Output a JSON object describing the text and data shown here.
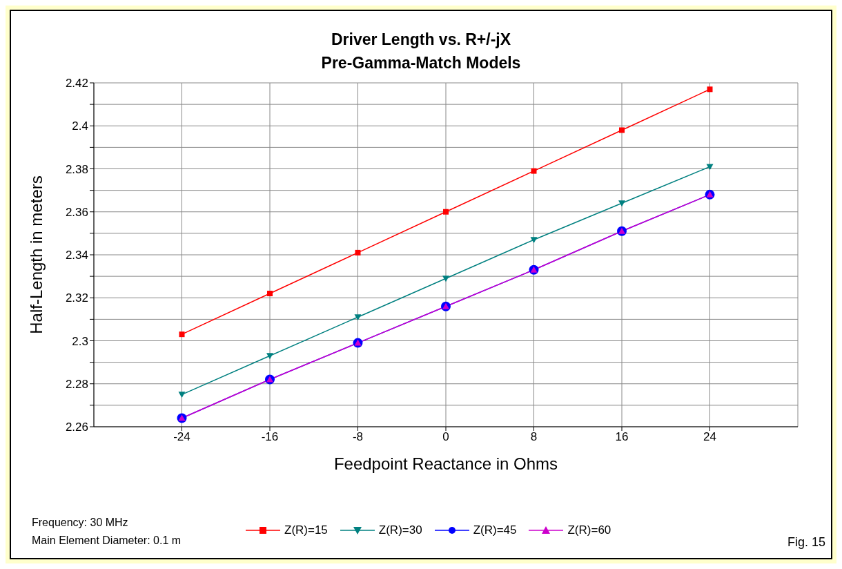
{
  "chart_data": {
    "type": "line",
    "title": "Driver Length vs. R+/-jX",
    "subtitle": "Pre-Gamma-Match Models",
    "xlabel": "Feedpoint Reactance in Ohms",
    "ylabel": "Half-Length in meters",
    "x": [
      -24,
      -16,
      -8,
      0,
      8,
      16,
      24
    ],
    "series": [
      {
        "name": "Z(R)=15",
        "color": "#ff0000",
        "marker": "square",
        "values": [
          2.303,
          2.322,
          2.341,
          2.36,
          2.379,
          2.398,
          2.417
        ]
      },
      {
        "name": "Z(R)=30",
        "color": "#008080",
        "marker": "triangle-down",
        "values": [
          2.275,
          2.293,
          2.311,
          2.329,
          2.347,
          2.364,
          2.381
        ]
      },
      {
        "name": "Z(R)=45",
        "color": "#0000ff",
        "marker": "circle",
        "values": [
          2.264,
          2.282,
          2.299,
          2.316,
          2.333,
          2.351,
          2.368
        ]
      },
      {
        "name": "Z(R)=60",
        "color": "#cc00cc",
        "marker": "triangle",
        "values": [
          2.264,
          2.282,
          2.299,
          2.316,
          2.333,
          2.351,
          2.368
        ]
      }
    ],
    "xlim": [
      -32,
      32
    ],
    "xticks": [
      -24,
      -16,
      -8,
      0,
      8,
      16,
      24
    ],
    "ylim": [
      2.26,
      2.42
    ],
    "yticks": [
      2.26,
      {
        "value": 2.27,
        "label": null
      },
      2.28,
      {
        "value": 2.29,
        "label": null
      },
      2.3,
      {
        "value": 2.31,
        "label": null
      },
      2.32,
      {
        "value": 2.33,
        "label": null
      },
      2.34,
      {
        "value": 2.35,
        "label": null
      },
      2.36,
      {
        "value": 2.37,
        "label": null
      },
      2.38,
      {
        "value": 2.39,
        "label": null
      },
      2.4,
      {
        "value": 2.41,
        "label": null
      },
      2.42
    ],
    "grid": true,
    "legend": "bottom",
    "line_style": "solid",
    "annotations": [
      "Frequency: 30 MHz",
      "Main Element Diameter: 0.1 m",
      "Fig. 15"
    ]
  }
}
